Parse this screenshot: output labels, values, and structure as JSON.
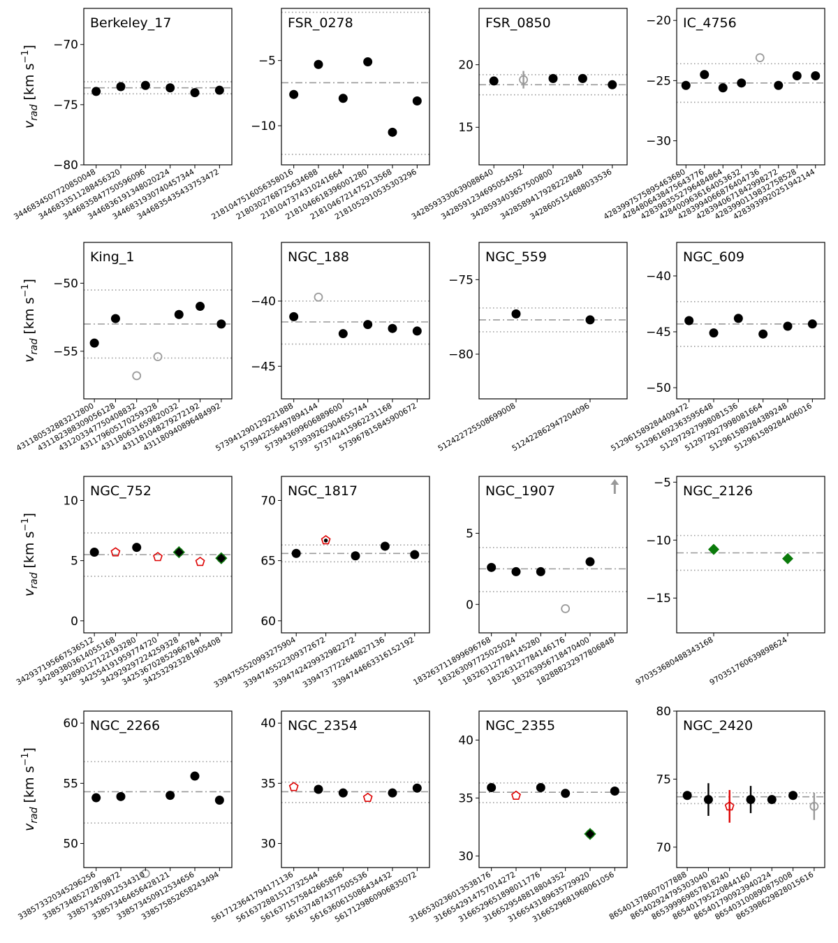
{
  "colors": {
    "member": "#000000",
    "outlier": "#999999",
    "binary": "#dd0000",
    "alt": "#0a7a0a",
    "line": "#999999"
  },
  "y_label": "v_rad [km s^-1]",
  "chart_data": [
    {
      "type": "scatter",
      "title": "Berkeley_17",
      "ylim": [
        -80,
        -67
      ],
      "yticks": [
        -80,
        -75,
        -70
      ],
      "mean": -73.6,
      "sig": [
        -73.1,
        -74.1
      ],
      "stars": [
        {
          "id": "3446834507720850048",
          "v": -73.9,
          "m": "o"
        },
        {
          "id": "3446833511288456320",
          "v": -73.5,
          "m": "o"
        },
        {
          "id": "3446835847750596096",
          "v": -73.4,
          "m": "o"
        },
        {
          "id": "3446836191348020224",
          "v": -73.6,
          "m": "o"
        },
        {
          "id": "3446831930740457344",
          "v": -74.0,
          "m": "o"
        },
        {
          "id": "3446835435433753472",
          "v": -73.8,
          "m": "o"
        }
      ]
    },
    {
      "type": "scatter",
      "title": "FSR_0278",
      "ylim": [
        -13,
        -1
      ],
      "yticks": [
        -10,
        -5
      ],
      "mean": -6.7,
      "sig": [
        -1.3,
        -12.2
      ],
      "stars": [
        {
          "id": "2181047516056358016",
          "v": -7.6,
          "m": "o"
        },
        {
          "id": "2180302768725634688",
          "v": -5.3,
          "m": "o"
        },
        {
          "id": "2181047374310241664",
          "v": -7.9,
          "m": "o"
        },
        {
          "id": "2181046618396001280",
          "v": -5.1,
          "m": "o"
        },
        {
          "id": "2181046721475213568",
          "v": -10.5,
          "m": "o"
        },
        {
          "id": "2181052910535303296",
          "v": -8.1,
          "m": "o"
        }
      ]
    },
    {
      "type": "scatter",
      "title": "FSR_0850",
      "ylim": [
        12,
        24.5
      ],
      "yticks": [
        15,
        20
      ],
      "mean": 18.4,
      "sig": [
        19.2,
        17.6
      ],
      "stars": [
        {
          "id": "3428593330639088640",
          "v": 18.7,
          "m": "o"
        },
        {
          "id": "3428591234695054592",
          "v": 18.8,
          "m": "go",
          "err": 0.7
        },
        {
          "id": "3428593403657500800",
          "v": 18.9,
          "m": "o"
        },
        {
          "id": "3428589417928222848",
          "v": 18.9,
          "m": "o"
        },
        {
          "id": "3428605154688033536",
          "v": 18.4,
          "m": "o"
        }
      ]
    },
    {
      "type": "scatter",
      "title": "IC_4756",
      "ylim": [
        -32,
        -19
      ],
      "yticks": [
        -30,
        -25,
        -20
      ],
      "mean": -25.2,
      "sig": [
        -23.6,
        -26.8
      ],
      "stars": [
        {
          "id": "4283997575895463680",
          "v": -25.4,
          "m": "o"
        },
        {
          "id": "4284806438475643776",
          "v": -24.5,
          "m": "o"
        },
        {
          "id": "4283983552796484864",
          "v": -25.6,
          "m": "o"
        },
        {
          "id": "4284009636164053632",
          "v": -25.2,
          "m": "o"
        },
        {
          "id": "4283994066876404736",
          "v": -23.1,
          "m": "go"
        },
        {
          "id": "4283940671842998272",
          "v": -25.4,
          "m": "o"
        },
        {
          "id": "4283990119832758528",
          "v": -24.6,
          "m": "o"
        },
        {
          "id": "4283939920251942144",
          "v": -24.6,
          "m": "o"
        }
      ]
    },
    {
      "type": "scatter",
      "title": "King_1",
      "ylim": [
        -58.5,
        -47
      ],
      "yticks": [
        -55,
        -50
      ],
      "mean": -53.0,
      "sig": [
        -50.5,
        -55.5
      ],
      "stars": [
        {
          "id": "431180532883212800",
          "v": -54.4,
          "m": "o"
        },
        {
          "id": "431182388309056128",
          "v": -52.6,
          "m": "o"
        },
        {
          "id": "431203347750408832",
          "v": -56.8,
          "m": "go"
        },
        {
          "id": "431179605170259328",
          "v": -55.4,
          "m": "go"
        },
        {
          "id": "431180631659820032",
          "v": -52.3,
          "m": "o"
        },
        {
          "id": "431181048279272192",
          "v": -51.7,
          "m": "o"
        },
        {
          "id": "431180940896484992",
          "v": -53.0,
          "m": "o"
        }
      ]
    },
    {
      "type": "scatter",
      "title": "NGC_188",
      "ylim": [
        -47.5,
        -35.5
      ],
      "yticks": [
        -45,
        -40
      ],
      "mean": -41.6,
      "sig": [
        -40.0,
        -43.3
      ],
      "stars": [
        {
          "id": "573941290129221888",
          "v": -41.2,
          "m": "o"
        },
        {
          "id": "573942256497894144",
          "v": -39.7,
          "m": "go"
        },
        {
          "id": "573943699606889600",
          "v": -42.5,
          "m": "o"
        },
        {
          "id": "573939262904655744",
          "v": -41.8,
          "m": "o"
        },
        {
          "id": "573742415962231168",
          "v": -42.1,
          "m": "o"
        },
        {
          "id": "573967815845900672",
          "v": -42.3,
          "m": "o"
        }
      ]
    },
    {
      "type": "scatter",
      "title": "NGC_559",
      "ylim": [
        -83,
        -72.5
      ],
      "yticks": [
        -80,
        -75
      ],
      "mean": -77.7,
      "sig": [
        -76.9,
        -78.5
      ],
      "stars": [
        {
          "id": "512422725508699008",
          "v": -77.3,
          "m": "o"
        },
        {
          "id": "512422862947204096",
          "v": -77.7,
          "m": "o"
        }
      ]
    },
    {
      "type": "scatter",
      "title": "NGC_609",
      "ylim": [
        -51,
        -37
      ],
      "yticks": [
        -50,
        -45,
        -40
      ],
      "mean": -44.3,
      "sig": [
        -42.3,
        -46.3
      ],
      "stars": [
        {
          "id": "512961589284409472",
          "v": -44.0,
          "m": "o"
        },
        {
          "id": "512961692363595648",
          "v": -45.1,
          "m": "o"
        },
        {
          "id": "512972927998081536",
          "v": -43.8,
          "m": "o"
        },
        {
          "id": "512972927998081664",
          "v": -45.2,
          "m": "o"
        },
        {
          "id": "512961589284389248",
          "v": -44.5,
          "m": "o"
        },
        {
          "id": "512961589284406016",
          "v": -44.3,
          "m": "o"
        }
      ]
    },
    {
      "type": "scatter",
      "title": "NGC_752",
      "ylim": [
        -1,
        12
      ],
      "yticks": [
        0,
        5,
        10
      ],
      "mean": 5.5,
      "sig": [
        7.3,
        3.7
      ],
      "stars": [
        {
          "id": "342937195667536512",
          "v": 5.7,
          "m": "o"
        },
        {
          "id": "342893803614055168",
          "v": 5.7,
          "m": "rp"
        },
        {
          "id": "342890127122193280",
          "v": 6.1,
          "m": "o"
        },
        {
          "id": "342554191959774720",
          "v": 5.3,
          "m": "rp"
        },
        {
          "id": "342929297224259328",
          "v": 5.7,
          "m": "gdo"
        },
        {
          "id": "342536702852966784",
          "v": 4.9,
          "m": "rp"
        },
        {
          "id": "342532923281905408",
          "v": 5.2,
          "m": "gdo"
        }
      ]
    },
    {
      "type": "scatter",
      "title": "NGC_1817",
      "ylim": [
        59,
        72
      ],
      "yticks": [
        60,
        65,
        70
      ],
      "mean": 65.6,
      "sig": [
        66.3,
        64.9
      ],
      "stars": [
        {
          "id": "3394755520993275904",
          "v": 65.6,
          "m": "o"
        },
        {
          "id": "3394745522309372672",
          "v": 66.7,
          "m": "rpf"
        },
        {
          "id": "3394742429932982272",
          "v": 65.4,
          "m": "o"
        },
        {
          "id": "3394737722648827136",
          "v": 66.2,
          "m": "o"
        },
        {
          "id": "3394744663316152192",
          "v": 65.5,
          "m": "o"
        }
      ]
    },
    {
      "type": "scatter",
      "title": "NGC_1907",
      "ylim": [
        -2,
        9
      ],
      "yticks": [
        0,
        5
      ],
      "mean": 2.5,
      "sig": [
        4.0,
        0.9
      ],
      "stars": [
        {
          "id": "183263711899696768",
          "v": 2.6,
          "m": "o"
        },
        {
          "id": "183263097725025024",
          "v": 2.3,
          "m": "o"
        },
        {
          "id": "183263127784145280",
          "v": 2.3,
          "m": "o"
        },
        {
          "id": "183263127784146176",
          "v": -0.3,
          "m": "go"
        },
        {
          "id": "183263956718470400",
          "v": 3.0,
          "m": "o"
        },
        {
          "id": "182888232977806848",
          "v": 8.5,
          "m": "arrow"
        }
      ]
    },
    {
      "type": "scatter",
      "title": "NGC_2126",
      "ylim": [
        -18,
        -4.5
      ],
      "yticks": [
        -15,
        -10,
        -5
      ],
      "mean": -11.1,
      "sig": [
        -9.6,
        -12.6
      ],
      "stars": [
        {
          "id": "970353680488343168",
          "v": -10.8,
          "m": "gd"
        },
        {
          "id": "970351760639898624",
          "v": -11.6,
          "m": "gd"
        }
      ]
    },
    {
      "type": "scatter",
      "title": "NGC_2266",
      "ylim": [
        48,
        61
      ],
      "yticks": [
        50,
        55,
        60
      ],
      "mean": 54.3,
      "sig": [
        56.8,
        51.7
      ],
      "stars": [
        {
          "id": "338573320345296256",
          "v": 53.8,
          "m": "o"
        },
        {
          "id": "338573485272879872",
          "v": 53.9,
          "m": "o"
        },
        {
          "id": "338573450912534310",
          "v": 47.5,
          "m": "go"
        },
        {
          "id": "338573464656428121",
          "v": 54.0,
          "m": "o"
        },
        {
          "id": "338573450912534656",
          "v": 55.6,
          "m": "o"
        },
        {
          "id": "338575852658243494",
          "v": 53.6,
          "m": "o"
        }
      ]
    },
    {
      "type": "scatter",
      "title": "NGC_2354",
      "ylim": [
        28,
        41
      ],
      "yticks": [
        30,
        35,
        40
      ],
      "mean": 34.3,
      "sig": [
        35.1,
        33.4
      ],
      "stars": [
        {
          "id": "5617123641794171136",
          "v": 34.7,
          "m": "rp"
        },
        {
          "id": "5616372881512732544",
          "v": 34.5,
          "m": "o"
        },
        {
          "id": "5616371575842665856",
          "v": 34.2,
          "m": "o"
        },
        {
          "id": "5616374874377505536",
          "v": 33.8,
          "m": "rp"
        },
        {
          "id": "5616360615086434432",
          "v": 34.2,
          "m": "o"
        },
        {
          "id": "5617129860906835072",
          "v": 34.6,
          "m": "o"
        }
      ]
    },
    {
      "type": "scatter",
      "title": "NGC_2355",
      "ylim": [
        29,
        42.5
      ],
      "yticks": [
        30,
        35,
        40
      ],
      "mean": 35.5,
      "sig": [
        36.3,
        34.6
      ],
      "stars": [
        {
          "id": "3166530236013538176",
          "v": 35.9,
          "m": "o"
        },
        {
          "id": "3166542914757014272",
          "v": 35.2,
          "m": "rp"
        },
        {
          "id": "3166529651898011776",
          "v": 35.9,
          "m": "o"
        },
        {
          "id": "3166529548818804352",
          "v": 35.4,
          "m": "o"
        },
        {
          "id": "3166543189635729920",
          "v": 31.9,
          "m": "gdo"
        },
        {
          "id": "3166529681968061056",
          "v": 35.6,
          "m": "o"
        }
      ]
    },
    {
      "type": "scatter",
      "title": "NGC_2420",
      "ylim": [
        68.5,
        80
      ],
      "yticks": [
        70,
        75,
        80
      ],
      "mean": 73.7,
      "sig": [
        74.0,
        73.2
      ],
      "stars": [
        {
          "id": "865401378607077888",
          "v": 73.8,
          "m": "o"
        },
        {
          "id": "865402924795303040",
          "v": 73.5,
          "m": "o",
          "err": 1.2
        },
        {
          "id": "865399969857818240",
          "v": 73.0,
          "m": "rp",
          "err": 1.2
        },
        {
          "id": "865401795220844160",
          "v": 73.5,
          "m": "o",
          "err": 1.0
        },
        {
          "id": "865401790923940224",
          "v": 73.5,
          "m": "o"
        },
        {
          "id": "865403100890875008",
          "v": 73.8,
          "m": "o"
        },
        {
          "id": "865398629828015616",
          "v": 73.0,
          "m": "go",
          "err": 1.0
        }
      ]
    }
  ]
}
